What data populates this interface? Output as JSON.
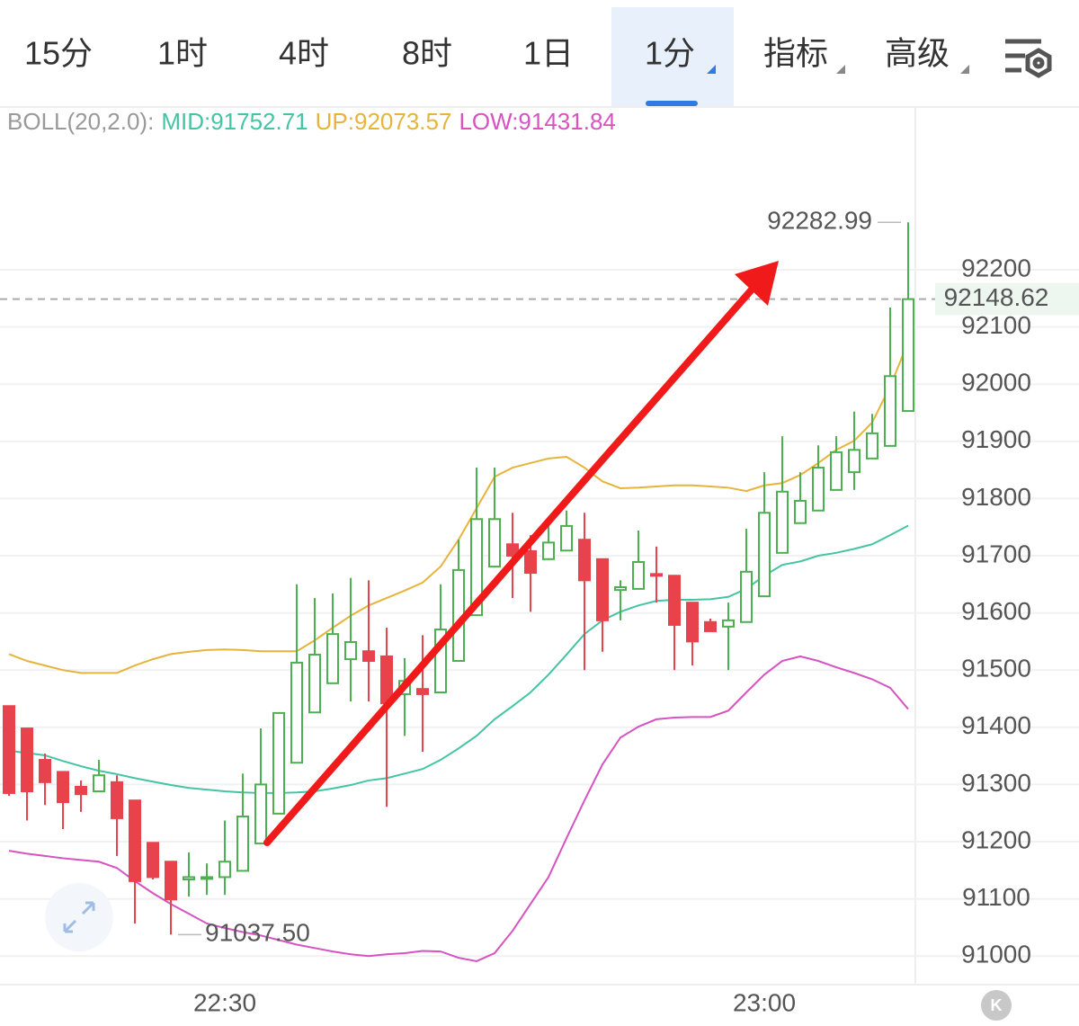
{
  "tabs": [
    "15分",
    "1时",
    "4时",
    "8时",
    "1日",
    "1分",
    "指标",
    "高级"
  ],
  "active_tab": 5,
  "logo": "K",
  "chart_data": {
    "type": "candlestick",
    "indicator_label": "BOLL(20,2.0):",
    "categories": [
      null,
      null,
      null,
      null,
      null,
      null,
      null,
      null,
      null,
      null,
      null,
      null,
      "22:30",
      null,
      null,
      null,
      null,
      null,
      null,
      null,
      null,
      null,
      null,
      null,
      null,
      null,
      null,
      null,
      null,
      null,
      null,
      null,
      null,
      null,
      null,
      null,
      null,
      null,
      null,
      null,
      null,
      null,
      "23:00",
      null,
      null,
      null,
      null,
      null,
      null,
      null,
      null
    ],
    "open": [
      91437,
      91398,
      91343,
      91322,
      91296,
      91288,
      91304,
      91272,
      91198,
      91165,
      91134,
      91135,
      91138,
      91149,
      91197,
      91249,
      91338,
      91426,
      91477,
      91519,
      91533,
      91524,
      91458,
      91467,
      91461,
      91516,
      91596,
      91681,
      91720,
      91708,
      91694,
      91709,
      91728,
      91694,
      91640,
      91642,
      91668,
      91665,
      91618,
      91584,
      91576,
      91584,
      91629,
      91705,
      91757,
      91779,
      91815,
      91846,
      91870,
      91892,
      91953
    ],
    "high": [
      91437,
      91398,
      91354,
      91322,
      91307,
      91343,
      91316,
      91272,
      91198,
      91165,
      91181,
      91162,
      91237,
      91319,
      91398,
      91425,
      91650,
      91626,
      91634,
      91661,
      91657,
      91574,
      91521,
      91561,
      91650,
      91728,
      91854,
      91854,
      91775,
      91736,
      91755,
      91779,
      91775,
      91694,
      91657,
      91744,
      91716,
      91665,
      91618,
      91590,
      91618,
      91747,
      91846,
      91909,
      91846,
      91893,
      91909,
      91952,
      91948,
      92134,
      92282.99
    ],
    "low": [
      91280,
      91237,
      91264,
      91222,
      91252,
      91288,
      91175,
      91057,
      91134,
      91037.5,
      91104,
      91107,
      91107,
      91149,
      91197,
      91249,
      91338,
      91426,
      91477,
      91445,
      91445,
      91261,
      91385,
      91357,
      91461,
      91516,
      91596,
      91681,
      91626,
      91602,
      91694,
      91709,
      91500,
      91532,
      91587,
      91642,
      91618,
      91500,
      91508,
      91568,
      91500,
      91584,
      91629,
      91705,
      91757,
      91779,
      91815,
      91815,
      91870,
      91892,
      91953
    ],
    "close": [
      91285,
      91288,
      91304,
      91269,
      91283,
      91316,
      91241,
      91131,
      91138,
      91099,
      91138,
      91138,
      91165,
      91244,
      91300,
      91425,
      91513,
      91527,
      91563,
      91549,
      91516,
      91442,
      91481,
      91458,
      91571,
      91675,
      91764,
      91764,
      91700,
      91670,
      91723,
      91752,
      91657,
      91587,
      91645,
      91689,
      91665,
      91579,
      91550,
      91568,
      91587,
      91672,
      91775,
      91812,
      91796,
      91854,
      91881,
      91885,
      91914,
      92014,
      92148.62
    ],
    "up_color": "#4caf50",
    "down_color": "#e8434d",
    "series": [
      {
        "name": "MID:91752.71",
        "color": "#45c4a4",
        "values": [
          91359,
          91355,
          91351,
          91341,
          91332,
          91324,
          91318,
          91311,
          91305,
          91299,
          91294,
          91291,
          91288,
          91286,
          91285,
          91285,
          91286,
          91288,
          91293,
          91299,
          91307,
          91311,
          91319,
          91327,
          91343,
          91363,
          91385,
          91414,
          91437,
          91461,
          91492,
          91527,
          91563,
          91587,
          91602,
          91613,
          91621,
          91623,
          91623,
          91624,
          91628,
          91642,
          91665,
          91684,
          91690,
          91700,
          91705,
          91712,
          91720,
          91736,
          91752.71
        ]
      },
      {
        "name": "UP:92073.57",
        "color": "#e6b43c",
        "values": [
          91528,
          91516,
          91508,
          91500,
          91495,
          91495,
          91495,
          91508,
          91519,
          91528,
          91532,
          91535,
          91536,
          91535,
          91533,
          91533,
          91533,
          91552,
          91574,
          91595,
          91613,
          91626,
          91639,
          91653,
          91681,
          91728,
          91783,
          91838,
          91854,
          91862,
          91870,
          91873,
          91854,
          91830,
          91818,
          91819,
          91821,
          91823,
          91823,
          91821,
          91819,
          91813,
          91823,
          91827,
          91841,
          91862,
          91885,
          91901,
          91933,
          91996,
          92073.57
        ]
      },
      {
        "name": "LOW:91431.84",
        "color": "#d653c1",
        "values": [
          91184,
          91179,
          91175,
          91171,
          91168,
          91165,
          91154,
          91131,
          91110,
          91091,
          91074,
          91057,
          91049,
          91042,
          91036,
          91028,
          91020,
          91014,
          91008,
          91003,
          91000,
          91003,
          91005,
          91009,
          91008,
          90997,
          90991,
          91005,
          91044,
          91091,
          91138,
          91206,
          91272,
          91335,
          91382,
          91401,
          91414,
          91417,
          91418,
          91418,
          91429,
          91461,
          91492,
          91516,
          91524,
          91516,
          91505,
          91495,
          91484,
          91469,
          91431.84
        ]
      }
    ],
    "ylim": [
      90950,
      92483
    ],
    "yticks": [
      91000,
      91100,
      91200,
      91300,
      91400,
      91500,
      91600,
      91700,
      91800,
      91900,
      92000,
      92100,
      92200
    ],
    "grid": true,
    "high_label": {
      "value": 92282.99,
      "label": "92282.99"
    },
    "low_label": {
      "value": 91037.5,
      "label": "91037.50"
    },
    "last_price": {
      "value": 92148.62,
      "label": "92148.62",
      "color": "#3aa547"
    }
  }
}
